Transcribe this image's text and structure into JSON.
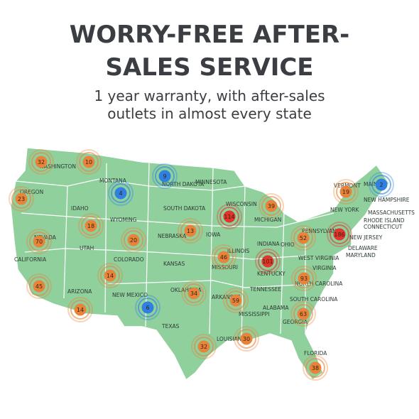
{
  "header": {
    "title": [
      "WORRY-FREE AFTER-",
      "SALES SERVICE"
    ],
    "subtitle": [
      "1 year warranty, with after-sales",
      "outlets in almost every state"
    ]
  },
  "states": [
    "WASHINGTON",
    "OREGON",
    "MONTANA",
    "NORTH DAKOTA",
    "MINNESOTA",
    "IDAHO",
    "WYOMING",
    "SOUTH DAKOTA",
    "WISCONSIN",
    "MICHIGAN",
    "NEBRASKA",
    "IOWA",
    "NEVADA",
    "UTAH",
    "COLORADO",
    "KANSAS",
    "ILLINOIS",
    "INDIANA",
    "OHIO",
    "PENNSYLVANIA",
    "NEW YORK",
    "VERMONT",
    "MAINE",
    "NEW HAMPSHIRE",
    "MASSACHUSETTS",
    "RHODE ISLAND",
    "CONNECTICUT",
    "NEW JERSEY",
    "DELAWARE",
    "MARYLAND",
    "WEST VIRGINIA",
    "VIRGINIA",
    "KENTUCKY",
    "MISSOURI",
    "CALIFORNIA",
    "ARIZONA",
    "NEW MEXICO",
    "OKLAHOMA",
    "ARKANSAS",
    "TENNESSEE",
    "NORTH CAROLINA",
    "SOUTH CAROLINA",
    "MISSISSIPPI",
    "ALABAMA",
    "GEORGIA",
    "TEXAS",
    "LOUISIANA",
    "FLORIDA"
  ],
  "markers": [
    {
      "value": 32,
      "color": "#e8843a"
    },
    {
      "value": 10,
      "color": "#e8843a"
    },
    {
      "value": 9,
      "color": "#2f80e0"
    },
    {
      "value": 4,
      "color": "#2f80e0"
    },
    {
      "value": 23,
      "color": "#e8843a"
    },
    {
      "value": 2,
      "color": "#2f80e0"
    },
    {
      "value": 19,
      "color": "#e8843a"
    },
    {
      "value": 39,
      "color": "#e8843a"
    },
    {
      "value": 114,
      "color": "#e0362c"
    },
    {
      "value": 18,
      "color": "#e8843a"
    },
    {
      "value": 13,
      "color": "#e8843a"
    },
    {
      "value": 20,
      "color": "#e8843a"
    },
    {
      "value": 52,
      "color": "#e8843a"
    },
    {
      "value": 186,
      "color": "#e0362c"
    },
    {
      "value": 70,
      "color": "#e8843a"
    },
    {
      "value": 46,
      "color": "#e8843a"
    },
    {
      "value": 101,
      "color": "#e0362c"
    },
    {
      "value": 14,
      "color": "#e8843a"
    },
    {
      "value": 93,
      "color": "#e8843a"
    },
    {
      "value": 45,
      "color": "#e8843a"
    },
    {
      "value": 34,
      "color": "#e8843a"
    },
    {
      "value": 59,
      "color": "#e8843a"
    },
    {
      "value": 6,
      "color": "#2f80e0"
    },
    {
      "value": 14,
      "color": "#e8843a"
    },
    {
      "value": 63,
      "color": "#e8843a"
    },
    {
      "value": 32,
      "color": "#e8843a"
    },
    {
      "value": 30,
      "color": "#e8843a"
    },
    {
      "value": 38,
      "color": "#e8843a"
    }
  ]
}
